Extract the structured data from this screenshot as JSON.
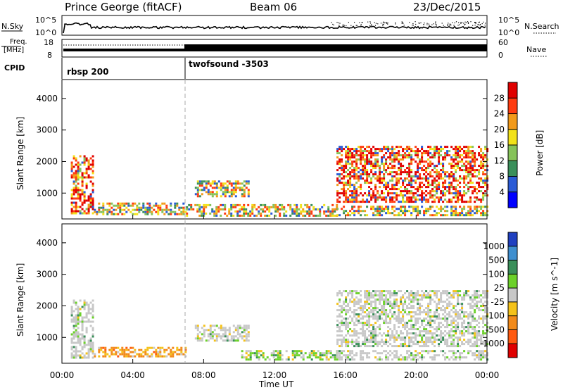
{
  "header": {
    "station": "Prince George (fitACF)",
    "beam": "Beam 06",
    "date": "23/Dec/2015"
  },
  "top_panels": {
    "nsky_label": "N.Sky",
    "nsky_ticks": [
      "10^5",
      "10^0"
    ],
    "nsearch_label": "N.Search",
    "nsearch_ticks": [
      "10^5",
      "10^0"
    ],
    "freq_label_1": "Freq.",
    "freq_label_2": "[MHz]",
    "freq_ticks": [
      "18",
      "8"
    ],
    "nave_label": "Nave",
    "nave_ticks": [
      "60",
      "0"
    ],
    "cpid_label": "CPID",
    "cpid_segments": [
      {
        "name": "rbsp 200",
        "start_hour": 0,
        "end_hour": 6.9
      },
      {
        "name": "twofsound -3503",
        "start_hour": 6.9,
        "end_hour": 24
      }
    ]
  },
  "chart_data": [
    {
      "type": "heatmap",
      "name": "power-panel",
      "ylabel": "Slant Range [km]",
      "xlim": [
        0,
        24
      ],
      "ylim": [
        180,
        4600
      ],
      "y_ticks": [
        1000,
        2000,
        3000,
        4000
      ],
      "colorbar_label": "Power [dB]",
      "colorbar_ticks": [
        "4",
        "8",
        "12",
        "16",
        "20",
        "24",
        "28"
      ],
      "colorbar_colors": [
        "#0000ff",
        "#2b5bd6",
        "#3a8f5a",
        "#86c35a",
        "#f2e21a",
        "#f29a1a",
        "#ff3b10",
        "#e00000"
      ],
      "echo_regions": [
        {
          "t0": 0.5,
          "t1": 1.8,
          "r0": 350,
          "r1": 2200,
          "level": "high"
        },
        {
          "t0": 1.8,
          "t1": 7.0,
          "r0": 350,
          "r1": 700,
          "level": "mid"
        },
        {
          "t0": 7.5,
          "t1": 10.5,
          "r0": 900,
          "r1": 1400,
          "level": "mid"
        },
        {
          "t0": 7.0,
          "t1": 15.5,
          "r0": 300,
          "r1": 650,
          "level": "mid"
        },
        {
          "t0": 15.5,
          "t1": 24.0,
          "r0": 700,
          "r1": 2500,
          "level": "high"
        },
        {
          "t0": 15.5,
          "t1": 24.0,
          "r0": 300,
          "r1": 600,
          "level": "mid"
        }
      ]
    },
    {
      "type": "heatmap",
      "name": "velocity-panel",
      "ylabel": "Slant Range [km]",
      "xlabel": "Time UT",
      "xlim": [
        0,
        24
      ],
      "x_ticks": [
        "00:00",
        "04:00",
        "08:00",
        "12:00",
        "16:00",
        "20:00",
        "00:00"
      ],
      "ylim": [
        180,
        4600
      ],
      "y_ticks": [
        1000,
        2000,
        3000,
        4000
      ],
      "colorbar_label": "Velocity [m s^-1]",
      "colorbar_ticks": [
        "1000",
        "500",
        "100",
        "25",
        "-25",
        "-100",
        "-500",
        "-1000"
      ],
      "colorbar_colors": [
        "#2040c0",
        "#3f8fcf",
        "#3a8f5a",
        "#6cd12a",
        "#c8c8c8",
        "#f4c21a",
        "#f28a1a",
        "#ff5a10",
        "#e00000"
      ],
      "echo_regions": [
        {
          "t0": 0.5,
          "t1": 1.8,
          "r0": 350,
          "r1": 2200,
          "level": "ground"
        },
        {
          "t0": 1.8,
          "t1": 7.0,
          "r0": 400,
          "r1": 700,
          "level": "negative"
        },
        {
          "t0": 7.5,
          "t1": 10.5,
          "r0": 900,
          "r1": 1400,
          "level": "ground"
        },
        {
          "t0": 10.0,
          "t1": 15.5,
          "r0": 300,
          "r1": 600,
          "level": "positive"
        },
        {
          "t0": 15.5,
          "t1": 24.0,
          "r0": 700,
          "r1": 2500,
          "level": "ground"
        },
        {
          "t0": 15.5,
          "t1": 24.0,
          "r0": 300,
          "r1": 600,
          "level": "ground"
        }
      ]
    }
  ]
}
